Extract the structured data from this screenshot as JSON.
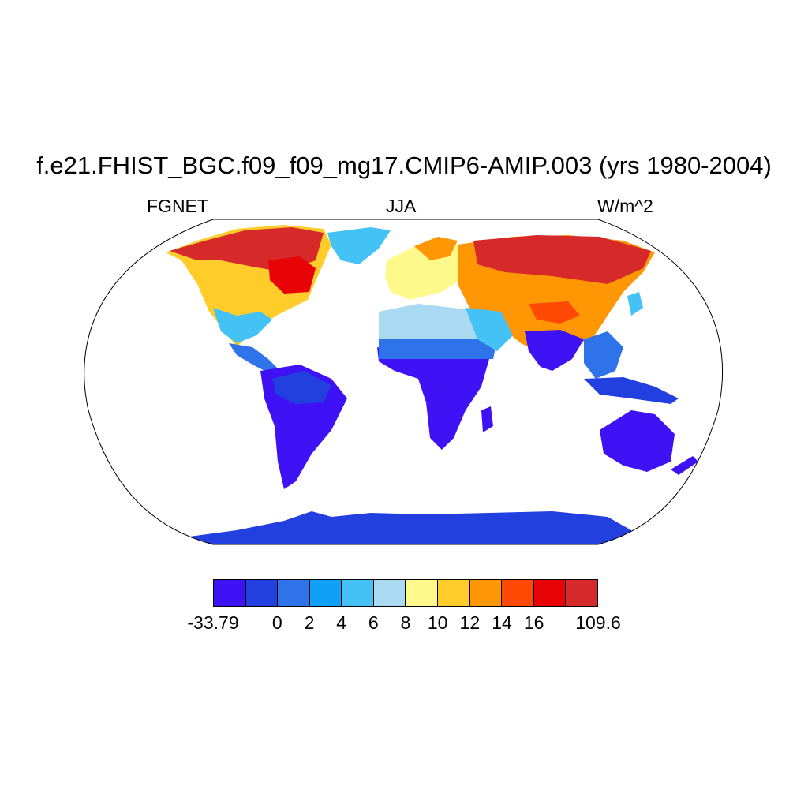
{
  "title": "f.e21.FHIST_BGC.f09_f09_mg17.CMIP6-AMIP.003 (yrs 1980-2004)",
  "subtitle_left": "FGNET",
  "subtitle_center": "JJA",
  "subtitle_right": "W/m^2",
  "projection": "robinson",
  "colorbar": {
    "colors": [
      "#3e12f5",
      "#2240e0",
      "#2f73ea",
      "#10a0f8",
      "#44c2f5",
      "#a9daf1",
      "#fff98c",
      "#ffcc2a",
      "#ff9705",
      "#ff4a06",
      "#e80306",
      "#d62a2a"
    ],
    "labels": [
      "-33.79",
      "0",
      "2",
      "4",
      "6",
      "8",
      "10",
      "12",
      "14",
      "16",
      "109.6"
    ]
  }
}
